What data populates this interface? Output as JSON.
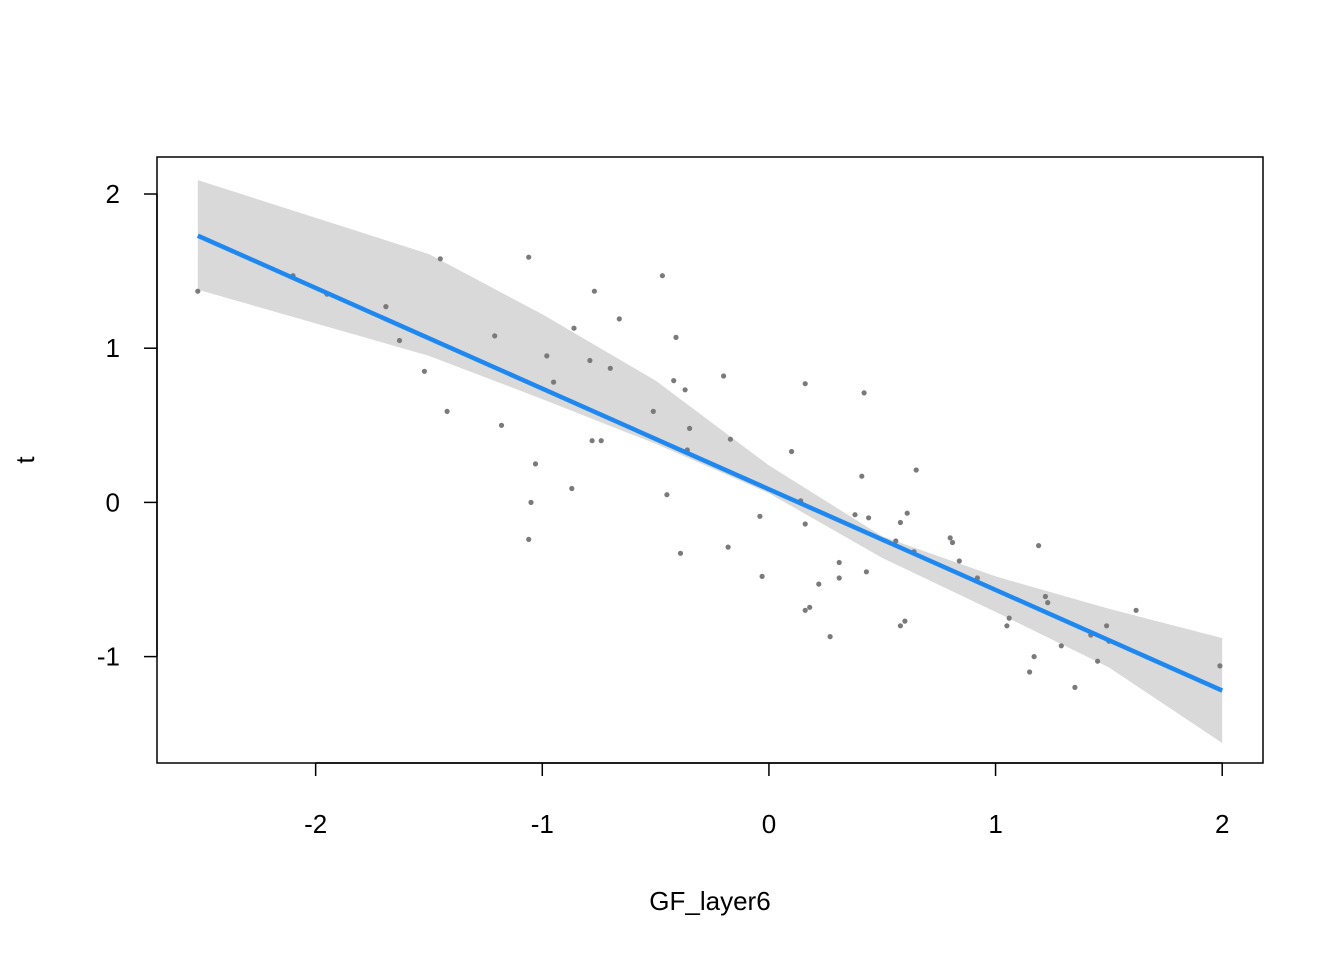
{
  "chart_data": {
    "type": "scatter",
    "title": "",
    "xlabel": "GF_layer6",
    "ylabel": "t",
    "xlim": [
      -2.7,
      2.18
    ],
    "ylim": [
      -1.69,
      2.24
    ],
    "x_ticks": [
      -2,
      -1,
      0,
      1,
      2
    ],
    "y_ticks": [
      -1,
      0,
      1,
      2
    ],
    "x_tick_labels": [
      "-2",
      "-1",
      "0",
      "1",
      "2"
    ],
    "y_tick_labels": [
      "-1",
      "0",
      "1",
      "2"
    ],
    "grid": false,
    "legend": "none",
    "colors": {
      "points": "#7a7a7a",
      "fit_line": "#1E88F0",
      "band": "#d9d9d9",
      "frame": "#000000"
    },
    "fit": {
      "x": [
        -2.52,
        2.0
      ],
      "y": [
        1.73,
        -1.22
      ]
    },
    "band": {
      "x": [
        -2.52,
        -1.5,
        -1.0,
        -0.5,
        0.0,
        0.5,
        1.0,
        1.5,
        2.0
      ],
      "lower": [
        1.38,
        0.95,
        0.67,
        0.38,
        0.06,
        -0.36,
        -0.71,
        -1.07,
        -1.56
      ],
      "upper": [
        2.09,
        1.61,
        1.22,
        0.79,
        0.24,
        -0.22,
        -0.48,
        -0.69,
        -0.88
      ]
    },
    "points": [
      {
        "x": -2.52,
        "y": 1.37
      },
      {
        "x": -2.1,
        "y": 1.47
      },
      {
        "x": -1.95,
        "y": 1.35
      },
      {
        "x": -1.69,
        "y": 1.27
      },
      {
        "x": -1.63,
        "y": 1.05
      },
      {
        "x": -1.52,
        "y": 0.85
      },
      {
        "x": -1.45,
        "y": 1.58
      },
      {
        "x": -1.42,
        "y": 0.59
      },
      {
        "x": -1.21,
        "y": 1.08
      },
      {
        "x": -1.18,
        "y": 0.5
      },
      {
        "x": -1.06,
        "y": 1.59
      },
      {
        "x": -1.05,
        "y": 0.0
      },
      {
        "x": -1.06,
        "y": -0.24
      },
      {
        "x": -1.03,
        "y": 0.25
      },
      {
        "x": -0.98,
        "y": 0.95
      },
      {
        "x": -0.95,
        "y": 0.78
      },
      {
        "x": -0.87,
        "y": 0.09
      },
      {
        "x": -0.86,
        "y": 1.13
      },
      {
        "x": -0.79,
        "y": 0.92
      },
      {
        "x": -0.77,
        "y": 1.37
      },
      {
        "x": -0.78,
        "y": 0.4
      },
      {
        "x": -0.74,
        "y": 0.4
      },
      {
        "x": -0.7,
        "y": 0.87
      },
      {
        "x": -0.66,
        "y": 1.19
      },
      {
        "x": -0.51,
        "y": 0.59
      },
      {
        "x": -0.47,
        "y": 1.47
      },
      {
        "x": -0.45,
        "y": 0.05
      },
      {
        "x": -0.42,
        "y": 0.79
      },
      {
        "x": -0.41,
        "y": 1.07
      },
      {
        "x": -0.39,
        "y": -0.33
      },
      {
        "x": -0.37,
        "y": 0.73
      },
      {
        "x": -0.35,
        "y": 0.48
      },
      {
        "x": -0.36,
        "y": 0.34
      },
      {
        "x": -0.2,
        "y": 0.82
      },
      {
        "x": -0.17,
        "y": 0.41
      },
      {
        "x": -0.18,
        "y": -0.29
      },
      {
        "x": -0.04,
        "y": -0.09
      },
      {
        "x": -0.03,
        "y": -0.48
      },
      {
        "x": 0.1,
        "y": 0.33
      },
      {
        "x": 0.14,
        "y": 0.01
      },
      {
        "x": 0.16,
        "y": 0.77
      },
      {
        "x": 0.16,
        "y": -0.14
      },
      {
        "x": 0.16,
        "y": -0.7
      },
      {
        "x": 0.18,
        "y": -0.68
      },
      {
        "x": 0.22,
        "y": -0.53
      },
      {
        "x": 0.27,
        "y": -0.87
      },
      {
        "x": 0.31,
        "y": -0.39
      },
      {
        "x": 0.31,
        "y": -0.49
      },
      {
        "x": 0.38,
        "y": -0.08
      },
      {
        "x": 0.41,
        "y": 0.17
      },
      {
        "x": 0.42,
        "y": 0.71
      },
      {
        "x": 0.43,
        "y": -0.45
      },
      {
        "x": 0.44,
        "y": -0.1
      },
      {
        "x": 0.56,
        "y": -0.25
      },
      {
        "x": 0.58,
        "y": -0.8
      },
      {
        "x": 0.58,
        "y": -0.13
      },
      {
        "x": 0.6,
        "y": -0.77
      },
      {
        "x": 0.61,
        "y": -0.07
      },
      {
        "x": 0.64,
        "y": -0.32
      },
      {
        "x": 0.65,
        "y": 0.21
      },
      {
        "x": 0.8,
        "y": -0.23
      },
      {
        "x": 0.81,
        "y": -0.26
      },
      {
        "x": 0.84,
        "y": -0.38
      },
      {
        "x": 0.92,
        "y": -0.49
      },
      {
        "x": 1.05,
        "y": -0.8
      },
      {
        "x": 1.06,
        "y": -0.75
      },
      {
        "x": 1.15,
        "y": -1.1
      },
      {
        "x": 1.17,
        "y": -1.0
      },
      {
        "x": 1.19,
        "y": -0.28
      },
      {
        "x": 1.22,
        "y": -0.61
      },
      {
        "x": 1.23,
        "y": -0.65
      },
      {
        "x": 1.29,
        "y": -0.93
      },
      {
        "x": 1.35,
        "y": -1.2
      },
      {
        "x": 1.42,
        "y": -0.86
      },
      {
        "x": 1.45,
        "y": -1.03
      },
      {
        "x": 1.49,
        "y": -0.8
      },
      {
        "x": 1.5,
        "y": -0.9
      },
      {
        "x": 1.62,
        "y": -0.7
      },
      {
        "x": 1.99,
        "y": -1.06
      }
    ]
  }
}
